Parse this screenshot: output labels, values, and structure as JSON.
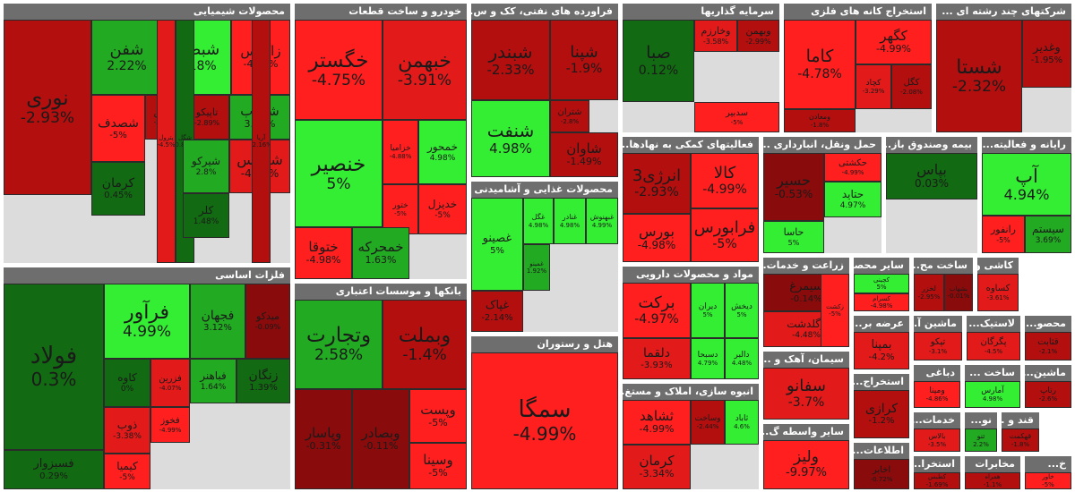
{
  "chart_data": {
    "type": "treemap",
    "title": "",
    "colors": {
      "pos_light": "#33ee33",
      "pos_mid": "#22aa22",
      "pos_dark": "#126b12",
      "neg_dark": "#8a0b0b",
      "neg_mid": "#b30f0f",
      "neg_red": "#e21a1a",
      "neg_bright": "#ff1f1f"
    },
    "sectors": [
      {
        "name": "محصولات شیمیایی",
        "tiles": [
          {
            "symbol": "نوری",
            "change": "-2.93%",
            "value": -2.93
          },
          {
            "symbol": "شفن",
            "change": "2.22%",
            "value": 2.22
          },
          {
            "symbol": "شبصیر",
            "change": "4.18%",
            "value": 4.18
          },
          {
            "symbol": "زاگرس",
            "change": "-4.97%",
            "value": -4.97
          },
          {
            "symbol": "شصدف",
            "change": "-5%",
            "value": -5
          },
          {
            "symbol": "فارس",
            "change": "-2.73%",
            "value": -2.73
          },
          {
            "symbol": "تاپیکو",
            "change": "-2.89%",
            "value": -2.89
          },
          {
            "symbol": "شلعاب",
            "change": "3.73%",
            "value": 3.73
          },
          {
            "symbol": "پترول",
            "change": "-4.5%",
            "value": -4.5
          },
          {
            "symbol": "شگل",
            "change": "0.89%",
            "value": 0.89
          },
          {
            "symbol": "کرمان",
            "change": "0.45%",
            "value": 0.45
          },
          {
            "symbol": "شیرکو",
            "change": "2.8%",
            "value": 2.8
          },
          {
            "symbol": "شدبیس",
            "change": "-4.41%",
            "value": -4.41
          },
          {
            "symbol": "آریا",
            "change": "-2.16%",
            "value": -2.16
          },
          {
            "symbol": "کلر",
            "change": "1.48%",
            "value": 1.48
          }
        ]
      },
      {
        "name": "خودرو و ساخت قطعات",
        "tiles": [
          {
            "symbol": "خگستر",
            "change": "-4.75%",
            "value": -4.75
          },
          {
            "symbol": "خبهمن",
            "change": "-3.91%",
            "value": -3.91
          },
          {
            "symbol": "خزامیا",
            "change": "-4.88%",
            "value": -4.88
          },
          {
            "symbol": "خمحور",
            "change": "4.98%",
            "value": 4.98
          },
          {
            "symbol": "خنصیر",
            "change": "5%",
            "value": 5
          },
          {
            "symbol": "ختور",
            "change": "-5%",
            "value": -5
          },
          {
            "symbol": "خدیزل",
            "change": "-5%",
            "value": -5
          },
          {
            "symbol": "ختوقا",
            "change": "-4.98%",
            "value": -4.98
          },
          {
            "symbol": "خمحرکه",
            "change": "1.63%",
            "value": 1.63
          }
        ]
      },
      {
        "name": "فراورده های نفتی، کک و س...",
        "tiles": [
          {
            "symbol": "شبندر",
            "change": "-2.33%",
            "value": -2.33
          },
          {
            "symbol": "شپنا",
            "change": "-1.9%",
            "value": -1.9
          },
          {
            "symbol": "شتران",
            "change": "-2.8%",
            "value": -2.8
          },
          {
            "symbol": "شنفت",
            "change": "4.98%",
            "value": 4.98
          },
          {
            "symbol": "شاوان",
            "change": "-1.49%",
            "value": -1.49
          }
        ]
      },
      {
        "name": "سرمایه گذاریها",
        "tiles": [
          {
            "symbol": "صبا",
            "change": "0.12%",
            "value": 0.12
          },
          {
            "symbol": "وخارزم",
            "change": "-3.58%",
            "value": -3.58
          },
          {
            "symbol": "وبهمن",
            "change": "-2.99%",
            "value": -2.99
          },
          {
            "symbol": "سدبیر",
            "change": "-5%",
            "value": -5
          }
        ]
      },
      {
        "name": "استخراج کانه های فلزی",
        "tiles": [
          {
            "symbol": "کاما",
            "change": "-4.78%",
            "value": -4.78
          },
          {
            "symbol": "کگهر",
            "change": "-4.99%",
            "value": -4.99
          },
          {
            "symbol": "کچاد",
            "change": "-3.29%",
            "value": -3.29
          },
          {
            "symbol": "کگل",
            "change": "-2.08%",
            "value": -2.08
          },
          {
            "symbol": "ومعادن",
            "change": "-1.8%",
            "value": -1.8
          }
        ]
      },
      {
        "name": "شرکتهای چند رشته ای ...",
        "tiles": [
          {
            "symbol": "شستا",
            "change": "-2.32%",
            "value": -2.32
          },
          {
            "symbol": "وغدیر",
            "change": "-1.95%",
            "value": -1.95
          }
        ]
      },
      {
        "name": "فلزات اساسی",
        "tiles": [
          {
            "symbol": "فولاد",
            "change": "0.3%",
            "value": 0.3
          },
          {
            "symbol": "فرآور",
            "change": "4.99%",
            "value": 4.99
          },
          {
            "symbol": "فجهان",
            "change": "3.12%",
            "value": 3.12
          },
          {
            "symbol": "میدکو",
            "change": "-0.09%",
            "value": -0.09
          },
          {
            "symbol": "کاوه",
            "change": "0%",
            "value": 0
          },
          {
            "symbol": "فزرین",
            "change": "-4.07%",
            "value": -4.07
          },
          {
            "symbol": "فخوز",
            "change": "-4.99%",
            "value": -4.99
          },
          {
            "symbol": "ذوب",
            "change": "-3.38%",
            "value": -3.38
          },
          {
            "symbol": "فسبزوار",
            "change": "0.29%",
            "value": 0.29
          },
          {
            "symbol": "کیمیا",
            "change": "-5%",
            "value": -5
          },
          {
            "symbol": "فباهنر",
            "change": "1.64%",
            "value": 1.64
          },
          {
            "symbol": "زنگان",
            "change": "1.39%",
            "value": 1.39
          }
        ]
      },
      {
        "name": "بانکها و موسسات اعتباری",
        "tiles": [
          {
            "symbol": "وتجارت",
            "change": "2.58%",
            "value": 2.58
          },
          {
            "symbol": "وبملت",
            "change": "-1.4%",
            "value": -1.4
          },
          {
            "symbol": "وپاسار",
            "change": "-0.31%",
            "value": -0.31
          },
          {
            "symbol": "وبصادر",
            "change": "-0.11%",
            "value": -0.11
          },
          {
            "symbol": "وپست",
            "change": "-5%",
            "value": -5
          },
          {
            "symbol": "وسینا",
            "change": "-5%",
            "value": -5
          }
        ]
      },
      {
        "name": "محصولات غذایی و آشامیدنی",
        "tiles": [
          {
            "symbol": "غصینو",
            "change": "5%",
            "value": 5
          },
          {
            "symbol": "غگل",
            "change": "4.98%",
            "value": 4.98
          },
          {
            "symbol": "غنادر",
            "change": "4.98%",
            "value": 4.98
          },
          {
            "symbol": "غبهنوش",
            "change": "4.99%",
            "value": 4.99
          },
          {
            "symbol": "غمینو",
            "change": "1.92%",
            "value": 1.92
          },
          {
            "symbol": "غپاک",
            "change": "-2.14%",
            "value": -2.14
          }
        ]
      },
      {
        "name": "هتل و رستوران",
        "tiles": [
          {
            "symbol": "سمگا",
            "change": "-4.99%",
            "value": -4.99
          }
        ]
      },
      {
        "name": "فعالیتهای کمکی به نهادها...",
        "tiles": [
          {
            "symbol": "انرژی3",
            "change": "-2.93%",
            "value": -2.93
          },
          {
            "symbol": "کالا",
            "change": "-4.99%",
            "value": -4.99
          },
          {
            "symbol": "فرابورس",
            "change": "-5%",
            "value": -5
          },
          {
            "symbol": "بورس",
            "change": "-4.98%",
            "value": -4.98
          }
        ]
      },
      {
        "name": "حمل ونقل، انبارداری ...",
        "tiles": [
          {
            "symbol": "حسیر",
            "change": "-0.53%",
            "value": -0.53
          },
          {
            "symbol": "حکشتی",
            "change": "-4.99%",
            "value": -4.99
          },
          {
            "symbol": "حتاید",
            "change": "4.97%",
            "value": 4.97
          },
          {
            "symbol": "حاسا",
            "change": "5%",
            "value": 5
          }
        ]
      },
      {
        "name": "بیمه وصندوق باز...",
        "tiles": [
          {
            "symbol": "بپاس",
            "change": "0.03%",
            "value": 0.03
          }
        ]
      },
      {
        "name": "رایانه و فعالیته...",
        "tiles": [
          {
            "symbol": "آپ",
            "change": "4.94%",
            "value": 4.94
          },
          {
            "symbol": "رانفور",
            "change": "-5%",
            "value": -5
          },
          {
            "symbol": "سیستم",
            "change": "3.69%",
            "value": 3.69
          }
        ]
      },
      {
        "name": "مواد و محصولات دارویی",
        "tiles": [
          {
            "symbol": "برکت",
            "change": "-4.97%",
            "value": -4.97
          },
          {
            "symbol": "دیران",
            "change": "5%",
            "value": 5
          },
          {
            "symbol": "دیخش",
            "change": "5%",
            "value": 5
          },
          {
            "symbol": "دلقما",
            "change": "-3.93%",
            "value": -3.93
          },
          {
            "symbol": "دسبحا",
            "change": "4.79%",
            "value": 4.79
          },
          {
            "symbol": "دالبر",
            "change": "4.48%",
            "value": 4.48
          }
        ]
      },
      {
        "name": "انبوه سازی، املاک و مستغ...",
        "tiles": [
          {
            "symbol": "ثشاهد",
            "change": "-4.99%",
            "value": -4.99
          },
          {
            "symbol": "وساخت",
            "change": "-2.44%",
            "value": -2.44
          },
          {
            "symbol": "ثاباد",
            "change": "4.6%",
            "value": 4.6
          },
          {
            "symbol": "کرمان",
            "change": "-3.34%",
            "value": -3.34
          }
        ]
      },
      {
        "name": "زراعت و خدمات...",
        "tiles": [
          {
            "symbol": "سیمرغ",
            "change": "-0.14%",
            "value": -0.14
          },
          {
            "symbol": "زگلدشت",
            "change": "-4.48%",
            "value": -4.48
          },
          {
            "symbol": "زکشت",
            "change": "-5%",
            "value": -5
          }
        ]
      },
      {
        "name": "سایر محصو...",
        "tiles": [
          {
            "symbol": "کچینی",
            "change": "5%",
            "value": 5
          },
          {
            "symbol": "کسرام",
            "change": "-4.98%",
            "value": -4.98
          }
        ]
      },
      {
        "name": "ساخت مح...",
        "tiles": [
          {
            "symbol": "لخزر",
            "change": "-2.95%",
            "value": -2.95
          },
          {
            "symbol": "بشهاب",
            "change": "-0.01%",
            "value": -0.01
          }
        ]
      },
      {
        "name": "کاشی و ...",
        "tiles": [
          {
            "symbol": "کساوه",
            "change": "-3.61%",
            "value": -3.61
          }
        ]
      },
      {
        "name": "عرضه بر...",
        "tiles": [
          {
            "symbol": "بمپنا",
            "change": "-4.2%",
            "value": -4.2
          }
        ]
      },
      {
        "name": "ماشین آ...",
        "tiles": [
          {
            "symbol": "تپکو",
            "change": "-3.1%",
            "value": -3.1
          }
        ]
      },
      {
        "name": "لاستیک...",
        "tiles": [
          {
            "symbol": "پگرگان",
            "change": "-4.5%",
            "value": -4.5
          }
        ]
      },
      {
        "name": "محصو...",
        "tiles": [
          {
            "symbol": "قثابت",
            "change": "-2.1%",
            "value": -2.1
          }
        ]
      },
      {
        "name": "سیمان، آهک و ...",
        "tiles": [
          {
            "symbol": "سفانو",
            "change": "-3.7%",
            "value": -3.7
          }
        ]
      },
      {
        "name": "سایر واسطه گ...",
        "tiles": [
          {
            "symbol": "ولیز",
            "change": "-9.97%",
            "value": -9.97
          }
        ]
      },
      {
        "name": "استخراج...",
        "tiles": [
          {
            "symbol": "کرازی",
            "change": "-1.2%",
            "value": -1.2
          }
        ]
      },
      {
        "name": "دباغی",
        "tiles": [
          {
            "symbol": "ومپنا",
            "change": "-4.86%",
            "value": -4.86
          }
        ]
      },
      {
        "name": "ساخت ...",
        "tiles": [
          {
            "symbol": "آمارس",
            "change": "4.98%",
            "value": 4.98
          }
        ]
      },
      {
        "name": "ماشین...",
        "tiles": [
          {
            "symbol": "رتاپ",
            "change": "-2.6%",
            "value": -2.6
          }
        ]
      },
      {
        "name": "خدمات...",
        "tiles": [
          {
            "symbol": "بالاس",
            "change": "-3.5%",
            "value": -3.5
          }
        ]
      },
      {
        "name": "نو...",
        "tiles": [
          {
            "symbol": "تنو",
            "change": "2.2%",
            "value": 2.2
          }
        ]
      },
      {
        "name": "قند و ...",
        "tiles": [
          {
            "symbol": "قهکمت",
            "change": "-1.8%",
            "value": -1.8
          }
        ]
      },
      {
        "name": "اطلاعات...",
        "tiles": [
          {
            "symbol": "اخابر",
            "change": "-0.72%",
            "value": -0.72
          }
        ]
      },
      {
        "name": "استخرا...",
        "tiles": [
          {
            "symbol": "کطبس",
            "change": "-1.69%",
            "value": -1.69
          }
        ]
      },
      {
        "name": "مخابرات",
        "tiles": [
          {
            "symbol": "همراه",
            "change": "-1.1%",
            "value": -1.1
          }
        ]
      },
      {
        "name": "خ...",
        "tiles": [
          {
            "symbol": "خاور",
            "change": "-5%",
            "value": -5
          }
        ]
      }
    ]
  }
}
